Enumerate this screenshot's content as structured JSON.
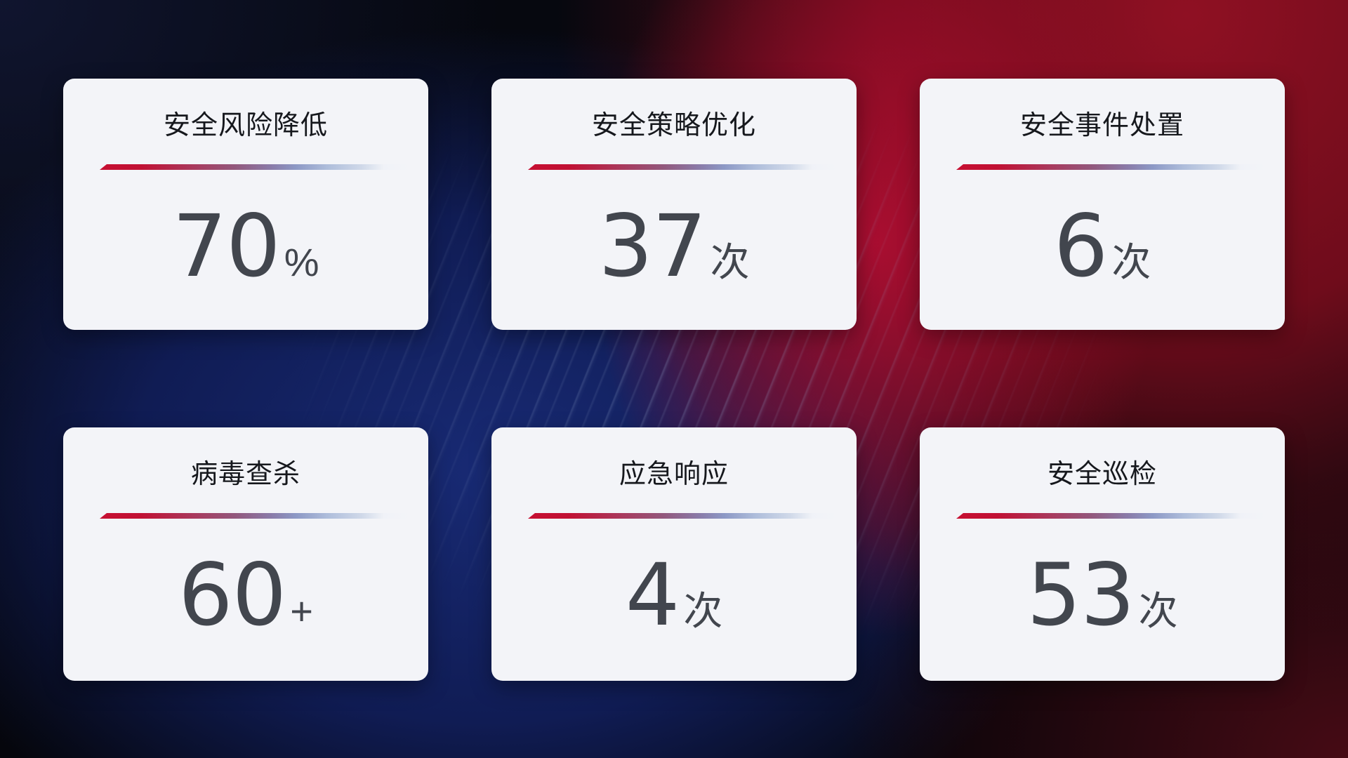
{
  "cards": [
    {
      "title": "安全风险降低",
      "value": "70",
      "unit": "%"
    },
    {
      "title": "安全策略优化",
      "value": "37",
      "unit": "次"
    },
    {
      "title": "安全事件处置",
      "value": "6",
      "unit": "次"
    },
    {
      "title": "病毒查杀",
      "value": "60",
      "unit": "+"
    },
    {
      "title": "应急响应",
      "value": "4",
      "unit": "次"
    },
    {
      "title": "安全巡检",
      "value": "53",
      "unit": "次"
    }
  ],
  "colors": {
    "accent_red": "#c60f32",
    "divider_blue": "#8c98c5",
    "card_background": "#f3f4f8",
    "title_text": "#16181d",
    "value_text": "#42464e",
    "background_navy": "#101c54",
    "background_red": "#8f1023",
    "background_black": "#06080f"
  }
}
